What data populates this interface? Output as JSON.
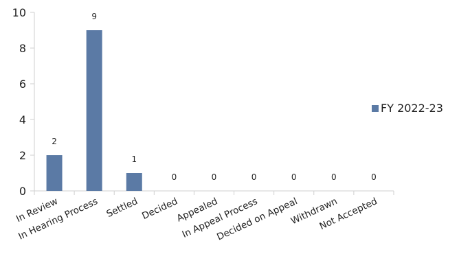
{
  "chart_data": {
    "type": "bar",
    "categories": [
      "In Review",
      "In Hearing Process",
      "Settled",
      "Decided",
      "Appealed",
      "In Appeal Process",
      "Decided on Appeal",
      "Withdrawn",
      "Not Accepted"
    ],
    "series": [
      {
        "name": "FY 2022-23",
        "values": [
          2,
          9,
          1,
          0,
          0,
          0,
          0,
          0,
          0
        ],
        "color": "#5b7aa5"
      }
    ],
    "y_ticks": [
      "0",
      "2",
      "4",
      "6",
      "8",
      "10"
    ],
    "ylim": [
      0,
      10
    ],
    "title": "",
    "xlabel": "",
    "ylabel": "",
    "grid": false,
    "legend_position": "right",
    "data_labels": true
  }
}
